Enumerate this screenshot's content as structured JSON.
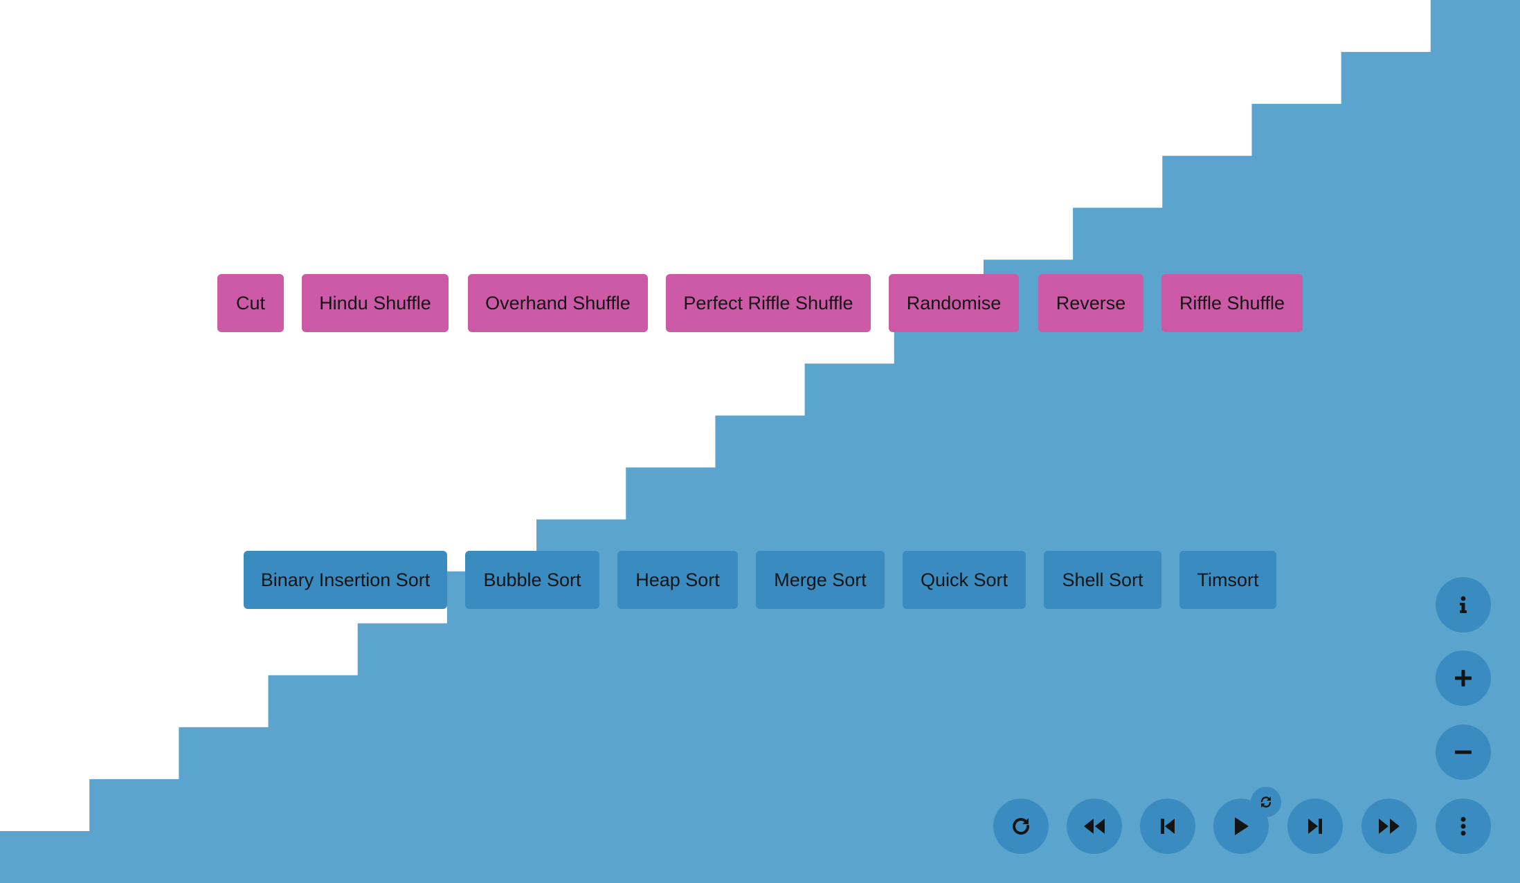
{
  "colors": {
    "background": "#ffffff",
    "bars": "#5ba4ce",
    "shuffle_button": "#cc5aa6",
    "sort_button": "#3a8bbf",
    "control_button": "#3a8bbf",
    "icon": "#141414"
  },
  "bars": {
    "count": 17,
    "values": [
      1,
      2,
      3,
      4,
      5,
      6,
      7,
      8,
      9,
      10,
      11,
      12,
      13,
      14,
      15,
      16,
      17
    ],
    "state": "sorted ascending"
  },
  "shuffle_buttons": [
    {
      "label": "Cut"
    },
    {
      "label": "Hindu Shuffle"
    },
    {
      "label": "Overhand Shuffle"
    },
    {
      "label": "Perfect Riffle Shuffle"
    },
    {
      "label": "Randomise"
    },
    {
      "label": "Reverse"
    },
    {
      "label": "Riffle Shuffle"
    }
  ],
  "sort_buttons": [
    {
      "label": "Binary Insertion Sort"
    },
    {
      "label": "Bubble Sort"
    },
    {
      "label": "Heap Sort"
    },
    {
      "label": "Merge Sort"
    },
    {
      "label": "Quick Sort"
    },
    {
      "label": "Shell Sort"
    },
    {
      "label": "Timsort"
    }
  ],
  "side_controls": [
    {
      "icon": "info-icon"
    },
    {
      "icon": "plus-icon"
    },
    {
      "icon": "minus-icon"
    }
  ],
  "playback_controls": [
    {
      "icon": "restart-icon"
    },
    {
      "icon": "rewind-icon"
    },
    {
      "icon": "step-back-icon"
    },
    {
      "icon": "play-icon"
    },
    {
      "icon": "step-forward-icon"
    },
    {
      "icon": "fast-forward-icon"
    },
    {
      "icon": "more-vertical-icon"
    }
  ],
  "loop_toggle": {
    "icon": "loop-icon"
  }
}
